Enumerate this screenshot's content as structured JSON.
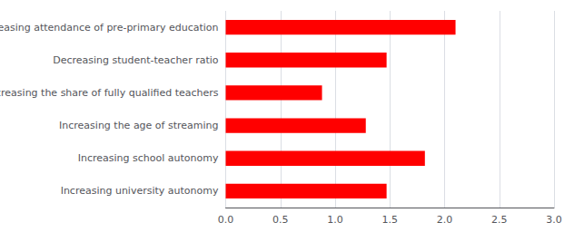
{
  "chart_data": {
    "type": "bar",
    "orientation": "horizontal",
    "categories": [
      "Increasing university autonomy",
      "Increasing school autonomy",
      "Increasing the age of streaming",
      "Increasing the share of fully qualified teachers",
      "Decreasing student-teacher ratio",
      "Increasing attendance of pre-primary education"
    ],
    "values": [
      1.47,
      1.82,
      1.28,
      0.88,
      1.47,
      2.1
    ],
    "color": "#ff0000",
    "xlim": [
      0,
      3.0
    ],
    "xticks": [
      {
        "value": 0,
        "label": "0.0"
      },
      0.5,
      {
        "value": 1,
        "label": "1.0"
      },
      1.5,
      {
        "value": 2,
        "label": "2.0"
      },
      2.5,
      {
        "value": 3,
        "label": "3.0"
      }
    ],
    "grid": true
  }
}
